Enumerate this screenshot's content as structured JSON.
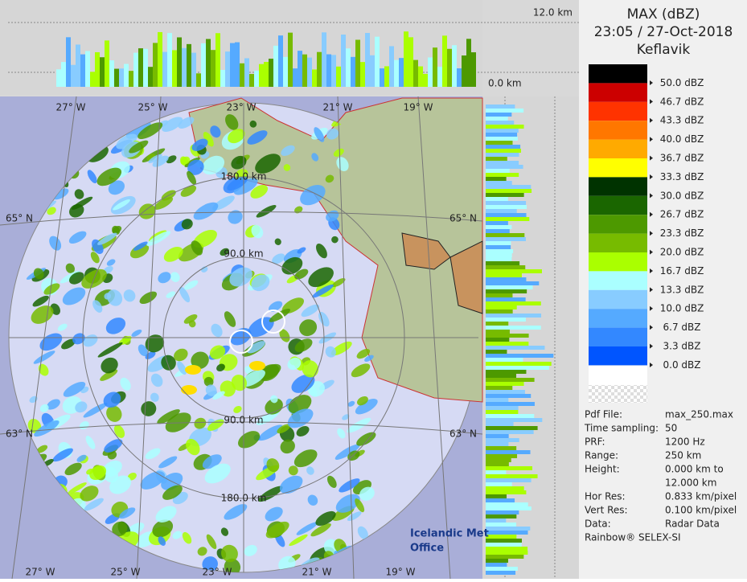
{
  "header": {
    "title": "MAX (dBZ)",
    "time": "23:05 / 27-Oct-2018",
    "site": "Keflavik"
  },
  "legend": {
    "items": [
      {
        "label": "50.0 dBZ",
        "color": "#000000"
      },
      {
        "label": "46.7 dBZ",
        "color": "#cc0000"
      },
      {
        "label": "43.3 dBZ",
        "color": "#ff3300"
      },
      {
        "label": "40.0 dBZ",
        "color": "#ff7700"
      },
      {
        "label": "36.7 dBZ",
        "color": "#ffaa00"
      },
      {
        "label": "33.3 dBZ",
        "color": "#ffff00"
      },
      {
        "label": "30.0 dBZ",
        "color": "#003300"
      },
      {
        "label": "26.7 dBZ",
        "color": "#1a6600"
      },
      {
        "label": "23.3 dBZ",
        "color": "#4d9900"
      },
      {
        "label": "20.0 dBZ",
        "color": "#77bb00"
      },
      {
        "label": "16.7 dBZ",
        "color": "#aaff00"
      },
      {
        "label": "13.3 dBZ",
        "color": "#aaffff"
      },
      {
        "label": "10.0 dBZ",
        "color": "#88ccff"
      },
      {
        "label": "6.7 dBZ",
        "color": "#55aaff"
      },
      {
        "label": "3.3 dBZ",
        "color": "#3388ff"
      },
      {
        "label": "0.0 dBZ",
        "color": "#0055ff"
      }
    ]
  },
  "info": {
    "rows": [
      [
        "Pdf File:",
        "max_250.max"
      ],
      [
        "Time sampling:",
        "50"
      ],
      [
        "PRF:",
        "1200 Hz"
      ],
      [
        "Range:",
        "250 km"
      ],
      [
        "Height:",
        "0.000 km to"
      ],
      [
        "",
        "12.000 km"
      ],
      [
        "Hor Res:",
        "0.833 km/pixel"
      ],
      [
        "Vert Res:",
        "0.100 km/pixel"
      ],
      [
        "Data:",
        "Radar Data"
      ]
    ],
    "footer": "Rainbow® SELEX-SI"
  },
  "map": {
    "lon_labels": [
      "27° W",
      "25° W",
      "23° W",
      "21° W",
      "19° W"
    ],
    "lat_labels": [
      "65° N",
      "63° N"
    ],
    "ring_labels": [
      "180.0 km",
      "90.0 km",
      "90.0 km",
      "180.0 km"
    ],
    "height_top": "12.0 km",
    "height_bottom": "0.0 km",
    "logo": [
      "Icelandic Met",
      "Office"
    ]
  }
}
